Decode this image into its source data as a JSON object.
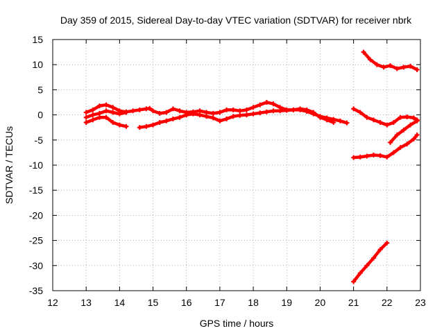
{
  "chart_data": {
    "type": "scatter",
    "title": "Day 359 of 2015, Sidereal Day-to-day VTEC variation (SDTVAR) for receiver nbrk",
    "xlabel": "GPS time / hours",
    "ylabel": "SDTVAR / TECUs",
    "xlim": [
      12,
      23
    ],
    "ylim": [
      -35,
      15
    ],
    "xticks": [
      12,
      13,
      14,
      15,
      16,
      17,
      18,
      19,
      20,
      21,
      22,
      23
    ],
    "yticks": [
      -35,
      -30,
      -25,
      -20,
      -15,
      -10,
      -5,
      0,
      5,
      10,
      15
    ],
    "grid": true,
    "marker_color": "#ff0000",
    "series": [
      {
        "points": [
          [
            13.0,
            0.5
          ],
          [
            13.2,
            1.0
          ],
          [
            13.4,
            1.8
          ],
          [
            13.6,
            2.0
          ],
          [
            13.8,
            1.5
          ],
          [
            14.0,
            0.8
          ],
          [
            14.2,
            0.6
          ],
          [
            14.4,
            0.8
          ],
          [
            14.6,
            1.0
          ],
          [
            14.8,
            1.2
          ],
          [
            14.9,
            1.3
          ],
          [
            15.0,
            0.8
          ],
          [
            15.2,
            0.3
          ],
          [
            15.4,
            0.5
          ],
          [
            15.6,
            1.2
          ],
          [
            15.8,
            0.8
          ],
          [
            16.0,
            0.5
          ],
          [
            16.2,
            0.6
          ],
          [
            16.4,
            0.8
          ],
          [
            16.6,
            0.5
          ],
          [
            16.8,
            0.3
          ],
          [
            17.0,
            0.5
          ],
          [
            17.2,
            1.0
          ],
          [
            17.4,
            1.0
          ],
          [
            17.6,
            0.8
          ],
          [
            17.8,
            1.0
          ],
          [
            18.0,
            1.5
          ],
          [
            18.2,
            2.0
          ],
          [
            18.4,
            2.5
          ],
          [
            18.6,
            2.2
          ],
          [
            18.8,
            1.5
          ],
          [
            19.0,
            1.0
          ],
          [
            19.2,
            1.0
          ],
          [
            19.4,
            1.2
          ],
          [
            19.6,
            1.0
          ],
          [
            19.8,
            0.5
          ],
          [
            20.0,
            -0.5
          ],
          [
            20.2,
            -1.0
          ],
          [
            20.4,
            -1.5
          ]
        ]
      },
      {
        "points": [
          [
            13.0,
            -1.5
          ],
          [
            13.2,
            -1.0
          ],
          [
            13.4,
            -0.5
          ],
          [
            13.6,
            -0.5
          ],
          [
            13.8,
            -1.5
          ],
          [
            14.0,
            -2.0
          ],
          [
            14.2,
            -2.3
          ]
        ]
      },
      {
        "points": [
          [
            14.6,
            -2.5
          ],
          [
            14.8,
            -2.3
          ],
          [
            15.0,
            -2.0
          ],
          [
            15.2,
            -1.5
          ],
          [
            15.4,
            -1.2
          ],
          [
            15.6,
            -0.8
          ],
          [
            15.8,
            -0.5
          ],
          [
            16.0,
            0.0
          ],
          [
            16.2,
            0.2
          ],
          [
            16.4,
            0.0
          ],
          [
            16.6,
            -0.3
          ],
          [
            16.8,
            -0.6
          ],
          [
            17.0,
            -1.2
          ],
          [
            17.2,
            -0.8
          ],
          [
            17.4,
            -0.3
          ],
          [
            17.6,
            -0.1
          ],
          [
            17.8,
            0.0
          ],
          [
            18.0,
            0.2
          ],
          [
            18.2,
            0.4
          ],
          [
            18.4,
            0.6
          ],
          [
            18.6,
            0.8
          ],
          [
            18.8,
            0.8
          ],
          [
            19.0,
            0.9
          ],
          [
            19.2,
            1.0
          ],
          [
            19.4,
            1.0
          ],
          [
            19.6,
            0.7
          ],
          [
            19.8,
            0.2
          ],
          [
            20.0,
            -0.3
          ],
          [
            20.2,
            -0.6
          ],
          [
            20.4,
            -0.9
          ],
          [
            20.6,
            -1.2
          ],
          [
            20.8,
            -1.6
          ]
        ]
      },
      {
        "points": [
          [
            13.0,
            -0.5
          ],
          [
            13.2,
            0.0
          ],
          [
            13.4,
            0.3
          ],
          [
            13.6,
            0.8
          ],
          [
            13.8,
            0.5
          ],
          [
            14.0,
            0.2
          ],
          [
            14.2,
            0.5
          ]
        ]
      },
      {
        "points": [
          [
            21.3,
            12.5
          ],
          [
            21.5,
            11.0
          ],
          [
            21.7,
            10.0
          ],
          [
            21.9,
            9.5
          ],
          [
            22.1,
            9.8
          ],
          [
            22.3,
            9.2
          ],
          [
            22.5,
            9.5
          ],
          [
            22.7,
            9.7
          ],
          [
            22.9,
            9.0
          ]
        ]
      },
      {
        "points": [
          [
            21.0,
            1.2
          ],
          [
            21.2,
            0.5
          ],
          [
            21.4,
            -0.5
          ],
          [
            21.6,
            -1.0
          ],
          [
            21.8,
            -1.5
          ],
          [
            22.0,
            -2.0
          ],
          [
            22.2,
            -1.5
          ],
          [
            22.4,
            -0.5
          ],
          [
            22.6,
            -0.4
          ],
          [
            22.8,
            -0.6
          ],
          [
            22.9,
            -1.0
          ]
        ]
      },
      {
        "points": [
          [
            22.1,
            -5.5
          ],
          [
            22.3,
            -4.0
          ],
          [
            22.5,
            -3.0
          ],
          [
            22.7,
            -2.0
          ],
          [
            22.9,
            -1.2
          ]
        ]
      },
      {
        "points": [
          [
            21.0,
            -8.5
          ],
          [
            21.2,
            -8.4
          ],
          [
            21.4,
            -8.2
          ],
          [
            21.6,
            -8.0
          ],
          [
            21.8,
            -8.1
          ],
          [
            22.0,
            -8.4
          ],
          [
            22.2,
            -7.5
          ],
          [
            22.4,
            -6.5
          ],
          [
            22.6,
            -5.8
          ],
          [
            22.8,
            -4.8
          ],
          [
            22.9,
            -4.0
          ]
        ]
      },
      {
        "points": [
          [
            21.0,
            -33.2
          ],
          [
            21.2,
            -31.5
          ],
          [
            21.4,
            -30.0
          ],
          [
            21.6,
            -28.5
          ],
          [
            21.8,
            -26.8
          ],
          [
            22.0,
            -25.5
          ]
        ]
      }
    ]
  }
}
